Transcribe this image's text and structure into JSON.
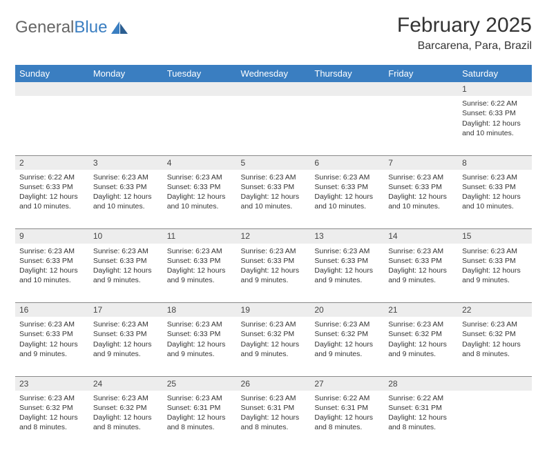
{
  "brand": {
    "part1": "General",
    "part2": "Blue"
  },
  "title": "February 2025",
  "location": "Barcarena, Para, Brazil",
  "colors": {
    "header_bg": "#3a7ec1",
    "header_text": "#ffffff",
    "daynum_bg": "#ededed",
    "border": "#888888",
    "text": "#333333",
    "logo_gray": "#666666",
    "logo_blue": "#3a7ec1",
    "page_bg": "#ffffff"
  },
  "typography": {
    "month_title_fontsize": 30,
    "location_fontsize": 16,
    "weekday_fontsize": 13,
    "daynum_fontsize": 12,
    "cell_fontsize": 10.5
  },
  "weekdays": [
    "Sunday",
    "Monday",
    "Tuesday",
    "Wednesday",
    "Thursday",
    "Friday",
    "Saturday"
  ],
  "weeks": [
    [
      null,
      null,
      null,
      null,
      null,
      null,
      {
        "day": "1",
        "sunrise": "6:22 AM",
        "sunset": "6:33 PM",
        "daylight": "12 hours and 10 minutes."
      }
    ],
    [
      {
        "day": "2",
        "sunrise": "6:22 AM",
        "sunset": "6:33 PM",
        "daylight": "12 hours and 10 minutes."
      },
      {
        "day": "3",
        "sunrise": "6:23 AM",
        "sunset": "6:33 PM",
        "daylight": "12 hours and 10 minutes."
      },
      {
        "day": "4",
        "sunrise": "6:23 AM",
        "sunset": "6:33 PM",
        "daylight": "12 hours and 10 minutes."
      },
      {
        "day": "5",
        "sunrise": "6:23 AM",
        "sunset": "6:33 PM",
        "daylight": "12 hours and 10 minutes."
      },
      {
        "day": "6",
        "sunrise": "6:23 AM",
        "sunset": "6:33 PM",
        "daylight": "12 hours and 10 minutes."
      },
      {
        "day": "7",
        "sunrise": "6:23 AM",
        "sunset": "6:33 PM",
        "daylight": "12 hours and 10 minutes."
      },
      {
        "day": "8",
        "sunrise": "6:23 AM",
        "sunset": "6:33 PM",
        "daylight": "12 hours and 10 minutes."
      }
    ],
    [
      {
        "day": "9",
        "sunrise": "6:23 AM",
        "sunset": "6:33 PM",
        "daylight": "12 hours and 10 minutes."
      },
      {
        "day": "10",
        "sunrise": "6:23 AM",
        "sunset": "6:33 PM",
        "daylight": "12 hours and 9 minutes."
      },
      {
        "day": "11",
        "sunrise": "6:23 AM",
        "sunset": "6:33 PM",
        "daylight": "12 hours and 9 minutes."
      },
      {
        "day": "12",
        "sunrise": "6:23 AM",
        "sunset": "6:33 PM",
        "daylight": "12 hours and 9 minutes."
      },
      {
        "day": "13",
        "sunrise": "6:23 AM",
        "sunset": "6:33 PM",
        "daylight": "12 hours and 9 minutes."
      },
      {
        "day": "14",
        "sunrise": "6:23 AM",
        "sunset": "6:33 PM",
        "daylight": "12 hours and 9 minutes."
      },
      {
        "day": "15",
        "sunrise": "6:23 AM",
        "sunset": "6:33 PM",
        "daylight": "12 hours and 9 minutes."
      }
    ],
    [
      {
        "day": "16",
        "sunrise": "6:23 AM",
        "sunset": "6:33 PM",
        "daylight": "12 hours and 9 minutes."
      },
      {
        "day": "17",
        "sunrise": "6:23 AM",
        "sunset": "6:33 PM",
        "daylight": "12 hours and 9 minutes."
      },
      {
        "day": "18",
        "sunrise": "6:23 AM",
        "sunset": "6:33 PM",
        "daylight": "12 hours and 9 minutes."
      },
      {
        "day": "19",
        "sunrise": "6:23 AM",
        "sunset": "6:32 PM",
        "daylight": "12 hours and 9 minutes."
      },
      {
        "day": "20",
        "sunrise": "6:23 AM",
        "sunset": "6:32 PM",
        "daylight": "12 hours and 9 minutes."
      },
      {
        "day": "21",
        "sunrise": "6:23 AM",
        "sunset": "6:32 PM",
        "daylight": "12 hours and 9 minutes."
      },
      {
        "day": "22",
        "sunrise": "6:23 AM",
        "sunset": "6:32 PM",
        "daylight": "12 hours and 8 minutes."
      }
    ],
    [
      {
        "day": "23",
        "sunrise": "6:23 AM",
        "sunset": "6:32 PM",
        "daylight": "12 hours and 8 minutes."
      },
      {
        "day": "24",
        "sunrise": "6:23 AM",
        "sunset": "6:32 PM",
        "daylight": "12 hours and 8 minutes."
      },
      {
        "day": "25",
        "sunrise": "6:23 AM",
        "sunset": "6:31 PM",
        "daylight": "12 hours and 8 minutes."
      },
      {
        "day": "26",
        "sunrise": "6:23 AM",
        "sunset": "6:31 PM",
        "daylight": "12 hours and 8 minutes."
      },
      {
        "day": "27",
        "sunrise": "6:22 AM",
        "sunset": "6:31 PM",
        "daylight": "12 hours and 8 minutes."
      },
      {
        "day": "28",
        "sunrise": "6:22 AM",
        "sunset": "6:31 PM",
        "daylight": "12 hours and 8 minutes."
      },
      null
    ]
  ],
  "labels": {
    "sunrise": "Sunrise:",
    "sunset": "Sunset:",
    "daylight": "Daylight:"
  }
}
